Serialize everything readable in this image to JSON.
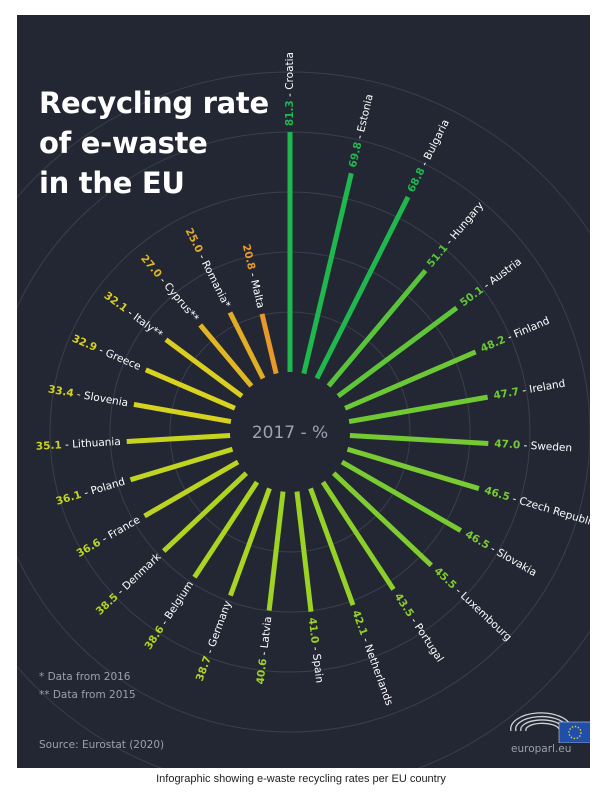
{
  "title_lines": [
    "Recycling rate",
    "of e-waste",
    "in the EU"
  ],
  "notes": [
    "* Data from 2016",
    "** Data from 2015"
  ],
  "source": "Source: Eurostat (2020)",
  "brand": "europarl.eu",
  "caption": "Infographic showing e-waste recycling rates per EU country",
  "chart_data": {
    "type": "bar",
    "layout": "radial",
    "center_label": "2017 - %",
    "unit": "%",
    "categories": [
      "Croatia",
      "Estonia",
      "Bulgaria",
      "Hungary",
      "Austria",
      "Finland",
      "Ireland",
      "Sweden",
      "Czech Republic",
      "Slovakia",
      "Luxembourg",
      "Portugal",
      "Netherlands",
      "Spain",
      "Latvia",
      "Germany",
      "Belgium",
      "Denmark",
      "France",
      "Poland",
      "Lithuania",
      "Slovenia",
      "Greece",
      "Italy**",
      "Cyprus**",
      "Romania*",
      "Malta"
    ],
    "values": [
      81.3,
      69.8,
      68.8,
      51.1,
      50.1,
      48.2,
      47.7,
      47.0,
      46.5,
      46.5,
      45.5,
      43.5,
      42.1,
      41.0,
      40.6,
      38.7,
      38.6,
      38.5,
      36.6,
      36.1,
      35.1,
      33.4,
      32.9,
      32.1,
      27.0,
      25.0,
      20.8
    ],
    "grid": true,
    "colors": {
      "low": "#e8962a",
      "mid": "#d9d21f",
      "yellowgreen": "#a9d520",
      "green": "#1fb84f",
      "label": "#ffffff",
      "center": "#9aa3b0",
      "ring": "#3a3f4b"
    }
  }
}
